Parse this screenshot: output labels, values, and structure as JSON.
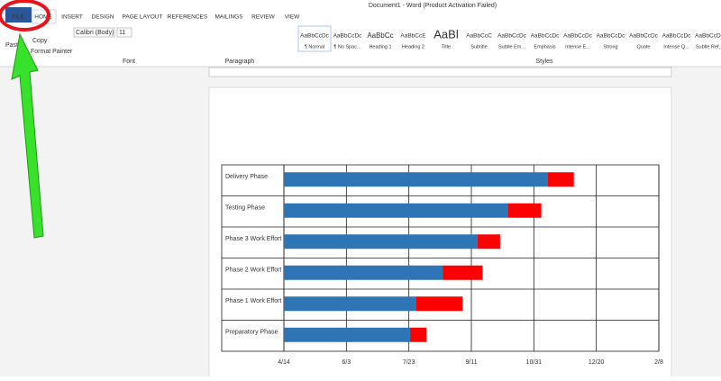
{
  "window": {
    "title": "Document1 - Word (Product Activation Failed)"
  },
  "tabs": [
    "FILE",
    "HOME",
    "INSERT",
    "DESIGN",
    "PAGE LAYOUT",
    "REFERENCES",
    "MAILINGS",
    "REVIEW",
    "VIEW"
  ],
  "ribbon": {
    "clipboard": {
      "paste": "Paste",
      "copy": "Copy",
      "format_painter": "Format Painter"
    },
    "font": {
      "name": "Calibri (Body)",
      "size": "11",
      "label": "Font"
    },
    "paragraph": {
      "label": "Paragraph"
    },
    "styles": {
      "label": "Styles",
      "items": [
        {
          "preview": "AaBbCcDc",
          "name": "¶ Normal"
        },
        {
          "preview": "AaBbCcDc",
          "name": "¶ No Spac..."
        },
        {
          "preview": "AaBbCc",
          "name": "Heading 1"
        },
        {
          "preview": "AaBbCcE",
          "name": "Heading 2"
        },
        {
          "preview": "AaBl",
          "name": "Title"
        },
        {
          "preview": "AaBbCcC",
          "name": "Subtitle"
        },
        {
          "preview": "AaBbCcDc",
          "name": "Subtle Em..."
        },
        {
          "preview": "AaBbCcDc",
          "name": "Emphasis"
        },
        {
          "preview": "AaBbCcDc",
          "name": "Intense E..."
        },
        {
          "preview": "AaBbCcDc",
          "name": "Strong"
        },
        {
          "preview": "AaBbCcDc",
          "name": "Quote"
        },
        {
          "preview": "AaBbCcDc",
          "name": "Intense Q..."
        },
        {
          "preview": "AaBbCcDc",
          "name": "Subtle Ref..."
        }
      ]
    }
  },
  "chart_data": {
    "type": "bar",
    "orientation": "horizontal",
    "stacked": true,
    "grid": true,
    "categories": [
      "Delivery Phase",
      "Testing Phase",
      "Phase 3 Work Effort",
      "Phase 2 Work Effort",
      "Phase 1 Work Effort",
      "Preparatory Phase"
    ],
    "series": [
      {
        "color": "#2e75b6",
        "values": [
          211,
          179,
          155,
          127,
          106,
          101
        ]
      },
      {
        "color": "#ff0000",
        "values": [
          21,
          27,
          18,
          32,
          37,
          13
        ]
      }
    ],
    "xlim": [
      0,
      300
    ],
    "xticks": [
      {
        "value": 0,
        "label": "4/14"
      },
      {
        "value": 50,
        "label": "6/3"
      },
      {
        "value": 100,
        "label": "7/23"
      },
      {
        "value": 150,
        "label": "9/11"
      },
      {
        "value": 200,
        "label": "10/31"
      },
      {
        "value": 250,
        "label": "12/20"
      },
      {
        "value": 300,
        "label": "2/8"
      }
    ]
  }
}
